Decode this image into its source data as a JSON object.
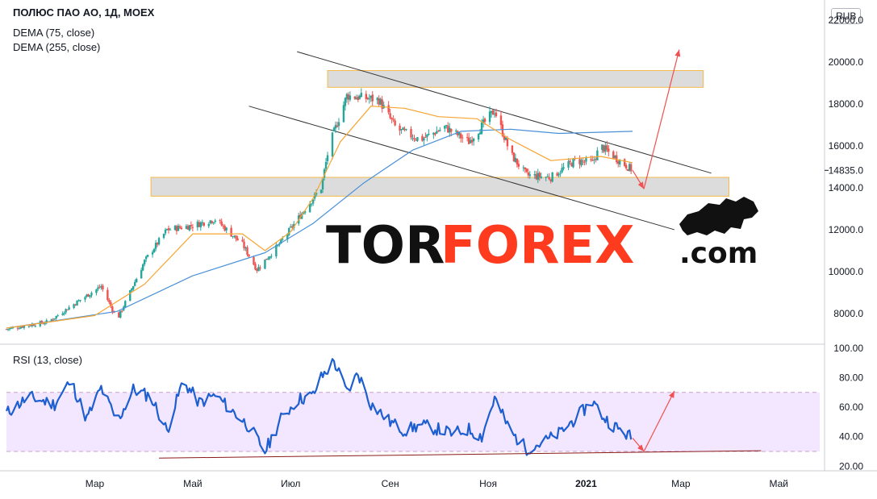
{
  "header": {
    "title": "ПОЛЮС ПАО АО, 1Д, MOEX",
    "dema75": "DEMA (75, close)",
    "dema255": "DEMA (255, close)",
    "currency": "RUB"
  },
  "rsi_panel": {
    "label": "RSI (13, close)"
  },
  "watermark": {
    "part1": "TOR",
    "part2": "FOREX",
    "part3": ".com"
  },
  "colors": {
    "up": "#26a69a",
    "down": "#ef5350",
    "dema75": "#f7a531",
    "dema255": "#4a90d9",
    "rsi": "#1e5fd0",
    "rsi_band": "#f3e6ff",
    "zone_fill": "#d6d6d6",
    "zone_border": "#f5b94a",
    "forecast": "#f0504f",
    "brand_red": "#ff3b1f",
    "brand_black": "#111111"
  },
  "chart_data": [
    {
      "type": "candlestick",
      "title": "ПОЛЮС ПАО АО, 1Д, MOEX",
      "x_ticks": [
        "Мар",
        "Май",
        "Июл",
        "Сен",
        "Ноя",
        "2021",
        "Мар",
        "Май"
      ],
      "y_ticks": [
        8000,
        10000,
        12000,
        14000,
        16000,
        18000,
        20000,
        22000
      ],
      "y_tick_labels": [
        "8000.0",
        "10000.0",
        "12000.0",
        "14000.0",
        "16000.0",
        "18000.0",
        "20000.0",
        "22000.0"
      ],
      "ylim": [
        6800,
        22200
      ],
      "last_price": 14835,
      "last_price_label": "14835.0",
      "price_path": [
        [
          "2020-01-06",
          7250
        ],
        [
          "2020-02-01",
          7600
        ],
        [
          "2020-02-20",
          8600
        ],
        [
          "2020-03-05",
          9300
        ],
        [
          "2020-03-15",
          7700
        ],
        [
          "2020-04-01",
          10500
        ],
        [
          "2020-04-15",
          12000
        ],
        [
          "2020-05-01",
          12200
        ],
        [
          "2020-05-15",
          12500
        ],
        [
          "2020-06-01",
          11300
        ],
        [
          "2020-06-10",
          10100
        ],
        [
          "2020-06-25",
          11400
        ],
        [
          "2020-07-10",
          13000
        ],
        [
          "2020-07-20",
          14000
        ],
        [
          "2020-07-25",
          16000
        ],
        [
          "2020-08-05",
          18400
        ],
        [
          "2020-08-15",
          18300
        ],
        [
          "2020-08-25",
          18200
        ],
        [
          "2020-09-05",
          16800
        ],
        [
          "2020-09-20",
          16300
        ],
        [
          "2020-10-05",
          16900
        ],
        [
          "2020-10-20",
          16200
        ],
        [
          "2020-11-05",
          17700
        ],
        [
          "2020-11-15",
          15600
        ],
        [
          "2020-11-25",
          14600
        ],
        [
          "2020-12-10",
          14500
        ],
        [
          "2020-12-25",
          15300
        ],
        [
          "2021-01-05",
          15200
        ],
        [
          "2021-01-10",
          16000
        ],
        [
          "2021-01-20",
          15400
        ],
        [
          "2021-01-30",
          14835
        ]
      ],
      "dema_75": [
        [
          "2020-01-06",
          7300
        ],
        [
          "2020-03-01",
          7900
        ],
        [
          "2020-04-01",
          9400
        ],
        [
          "2020-05-01",
          11800
        ],
        [
          "2020-06-01",
          11800
        ],
        [
          "2020-06-15",
          11000
        ],
        [
          "2020-07-01",
          11900
        ],
        [
          "2020-07-15",
          13500
        ],
        [
          "2020-08-01",
          16200
        ],
        [
          "2020-08-20",
          17900
        ],
        [
          "2020-09-10",
          17800
        ],
        [
          "2020-10-01",
          17400
        ],
        [
          "2020-10-25",
          17300
        ],
        [
          "2020-11-15",
          16300
        ],
        [
          "2020-12-10",
          15300
        ],
        [
          "2021-01-10",
          15500
        ],
        [
          "2021-01-30",
          15200
        ]
      ],
      "dema_255": [
        [
          "2020-01-06",
          7300
        ],
        [
          "2020-03-15",
          8100
        ],
        [
          "2020-05-01",
          9800
        ],
        [
          "2020-06-15",
          10900
        ],
        [
          "2020-07-15",
          12300
        ],
        [
          "2020-08-15",
          14200
        ],
        [
          "2020-09-15",
          15800
        ],
        [
          "2020-10-15",
          16700
        ],
        [
          "2020-11-15",
          16800
        ],
        [
          "2020-12-15",
          16600
        ],
        [
          "2021-01-30",
          16700
        ]
      ],
      "resistance_zone": [
        18800,
        19600
      ],
      "support_zone": [
        13600,
        14500
      ],
      "channel_upper": [
        [
          "2020-07-05",
          20500
        ],
        [
          "2021-03-20",
          14700
        ]
      ],
      "channel_lower": [
        [
          "2020-06-05",
          17900
        ],
        [
          "2021-02-25",
          12000
        ]
      ]
    },
    {
      "type": "line",
      "title": "RSI (13, close)",
      "y_ticks": [
        20,
        40,
        60,
        80,
        100
      ],
      "y_tick_labels": [
        "20.00",
        "40.00",
        "60.00",
        "80.00",
        "100.00"
      ],
      "ylim": [
        18,
        101
      ],
      "band": [
        30,
        70
      ],
      "series": [
        {
          "points": [
            [
              "2020-01-06",
              56
            ],
            [
              "2020-01-20",
              67
            ],
            [
              "2020-02-05",
              62
            ],
            [
              "2020-02-15",
              78
            ],
            [
              "2020-02-25",
              52
            ],
            [
              "2020-03-05",
              73
            ],
            [
              "2020-03-15",
              50
            ],
            [
              "2020-03-25",
              72
            ],
            [
              "2020-04-05",
              67
            ],
            [
              "2020-04-15",
              44
            ],
            [
              "2020-04-25",
              78
            ],
            [
              "2020-05-05",
              63
            ],
            [
              "2020-05-15",
              68
            ],
            [
              "2020-05-25",
              58
            ],
            [
              "2020-06-05",
              47
            ],
            [
              "2020-06-15",
              30
            ],
            [
              "2020-06-25",
              52
            ],
            [
              "2020-07-05",
              65
            ],
            [
              "2020-07-15",
              68
            ],
            [
              "2020-07-20",
              80
            ],
            [
              "2020-07-28",
              91
            ],
            [
              "2020-08-05",
              70
            ],
            [
              "2020-08-12",
              83
            ],
            [
              "2020-08-20",
              62
            ],
            [
              "2020-09-01",
              50
            ],
            [
              "2020-09-10",
              44
            ],
            [
              "2020-09-20",
              48
            ],
            [
              "2020-10-01",
              45
            ],
            [
              "2020-10-10",
              42
            ],
            [
              "2020-10-20",
              45
            ],
            [
              "2020-10-28",
              40
            ],
            [
              "2020-11-05",
              66
            ],
            [
              "2020-11-15",
              43
            ],
            [
              "2020-11-25",
              32
            ],
            [
              "2020-12-05",
              36
            ],
            [
              "2020-12-15",
              42
            ],
            [
              "2020-12-25",
              52
            ],
            [
              "2021-01-05",
              64
            ],
            [
              "2021-01-12",
              53
            ],
            [
              "2021-01-20",
              46
            ],
            [
              "2021-01-30",
              39
            ]
          ]
        }
      ],
      "forecast_arrows": [
        [
          "2021-01-30",
          "2021-02-05",
          "2021-02-28"
        ]
      ]
    }
  ]
}
